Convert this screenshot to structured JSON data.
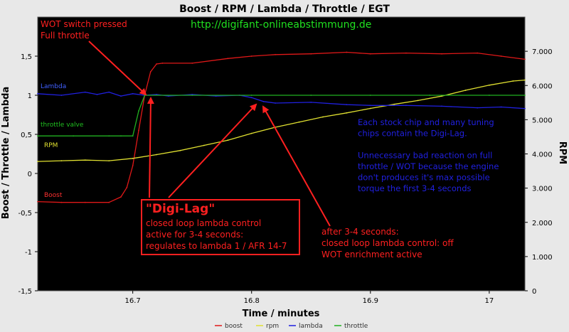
{
  "chart_data": {
    "type": "line",
    "title": "Boost / RPM / Lambda / Throttle / EGT",
    "xlabel": "Time / minutes",
    "ylabel_left": "Boost / Throttle / Lambda",
    "ylabel_right": "RPM",
    "xlim": [
      16.62,
      17.03
    ],
    "ylim_left": [
      -1.5,
      2.0
    ],
    "ylim_right": [
      0,
      8000
    ],
    "x_ticks": [
      {
        "value": 16.7,
        "label": "16.7"
      },
      {
        "value": 16.8,
        "label": "16.8"
      },
      {
        "value": 16.9,
        "label": "16.9"
      },
      {
        "value": 17.0,
        "label": "17"
      }
    ],
    "y_ticks_left": [
      {
        "value": 1.5,
        "label": "1,5"
      },
      {
        "value": 1.0,
        "label": "1"
      },
      {
        "value": 0.5,
        "label": "0,5"
      },
      {
        "value": 0.0,
        "label": "0"
      },
      {
        "value": -0.5,
        "label": "-0,5"
      },
      {
        "value": -1.0,
        "label": "-1"
      },
      {
        "value": -1.5,
        "label": "-1,5"
      }
    ],
    "y_ticks_right": [
      {
        "value": 7000,
        "label": "7.000"
      },
      {
        "value": 6000,
        "label": "6.000"
      },
      {
        "value": 5000,
        "label": "5.000"
      },
      {
        "value": 4000,
        "label": "4.000"
      },
      {
        "value": 3000,
        "label": "3.000"
      },
      {
        "value": 2000,
        "label": "2.000"
      },
      {
        "value": 1000,
        "label": "1.000"
      },
      {
        "value": 0,
        "label": "0"
      }
    ],
    "grid": false,
    "legend_position": "bottom",
    "series": [
      {
        "name": "boost",
        "color": "#e01818",
        "axis": "left",
        "x": [
          16.62,
          16.64,
          16.66,
          16.68,
          16.69,
          16.695,
          16.7,
          16.705,
          16.71,
          16.715,
          16.72,
          16.725,
          16.75,
          16.78,
          16.8,
          16.82,
          16.85,
          16.88,
          16.9,
          16.93,
          16.96,
          16.99,
          17.01,
          17.03
        ],
        "y": [
          -0.36,
          -0.37,
          -0.37,
          -0.37,
          -0.3,
          -0.18,
          0.1,
          0.55,
          1.0,
          1.3,
          1.4,
          1.41,
          1.41,
          1.47,
          1.5,
          1.52,
          1.53,
          1.55,
          1.53,
          1.54,
          1.53,
          1.54,
          1.5,
          1.46
        ]
      },
      {
        "name": "rpm",
        "color": "#e0e030",
        "axis": "right",
        "x": [
          16.62,
          16.64,
          16.66,
          16.68,
          16.7,
          16.72,
          16.74,
          16.76,
          16.78,
          16.8,
          16.82,
          16.84,
          16.86,
          16.88,
          16.9,
          16.92,
          16.94,
          16.96,
          16.98,
          17.0,
          17.02,
          17.03
        ],
        "y": [
          3780,
          3800,
          3820,
          3800,
          3870,
          3980,
          4100,
          4250,
          4400,
          4600,
          4780,
          4930,
          5080,
          5200,
          5330,
          5450,
          5560,
          5690,
          5860,
          6010,
          6130,
          6160
        ]
      },
      {
        "name": "lambda",
        "color": "#2020e0",
        "axis": "left",
        "x": [
          16.62,
          16.64,
          16.66,
          16.67,
          16.68,
          16.69,
          16.7,
          16.71,
          16.72,
          16.73,
          16.75,
          16.77,
          16.79,
          16.8,
          16.81,
          16.82,
          16.85,
          16.88,
          16.9,
          16.93,
          16.96,
          16.99,
          17.01,
          17.03
        ],
        "y": [
          1.02,
          1.0,
          1.04,
          1.01,
          1.04,
          0.99,
          1.02,
          1.0,
          1.01,
          0.99,
          1.01,
          0.99,
          1.0,
          0.97,
          0.92,
          0.9,
          0.91,
          0.88,
          0.87,
          0.87,
          0.86,
          0.84,
          0.85,
          0.83
        ]
      },
      {
        "name": "throttle",
        "color": "#20b020",
        "axis": "left",
        "x": [
          16.62,
          16.65,
          16.68,
          16.69,
          16.7,
          16.705,
          16.71,
          16.75,
          16.8,
          16.85,
          16.9,
          16.95,
          17.0,
          17.03
        ],
        "y": [
          0.48,
          0.48,
          0.48,
          0.48,
          0.48,
          0.8,
          1.0,
          1.0,
          1.0,
          1.0,
          1.0,
          1.0,
          1.0,
          1.0
        ]
      }
    ],
    "series_labels": [
      {
        "text": "Lambda",
        "color": "#4060ff"
      },
      {
        "text": "throttle valve",
        "color": "#20c020"
      },
      {
        "text": "RPM",
        "color": "#e0e030"
      },
      {
        "text": "Boost",
        "color": "#ff3030"
      }
    ],
    "annotations": {
      "website": "http://digifant-onlineabstimmung.de",
      "wot": [
        "WOT switch pressed",
        "Full throttle"
      ],
      "digilag_title": "\"Digi-Lag\"",
      "digilag_lines": [
        "closed loop lambda control",
        "active for 3-4 seconds:",
        "regulates to lambda 1 / AFR 14-7"
      ],
      "after_lines": [
        "after 3-4 seconds:",
        "closed loop lambda control: off",
        "WOT enrichment active"
      ],
      "info_lines": [
        "Each stock chip and many tuning",
        "chips contain the Digi-Lag.",
        "",
        "Unnecessary bad reaction on full",
        "throttle / WOT because the engine",
        "don't produces it's max possible",
        "torque the first 3-4 seconds"
      ]
    },
    "legend": [
      {
        "label": "boost",
        "color": "#e01818"
      },
      {
        "label": "rpm",
        "color": "#e0e030"
      },
      {
        "label": "lambda",
        "color": "#2020e0"
      },
      {
        "label": "throttle",
        "color": "#20b020"
      }
    ]
  }
}
